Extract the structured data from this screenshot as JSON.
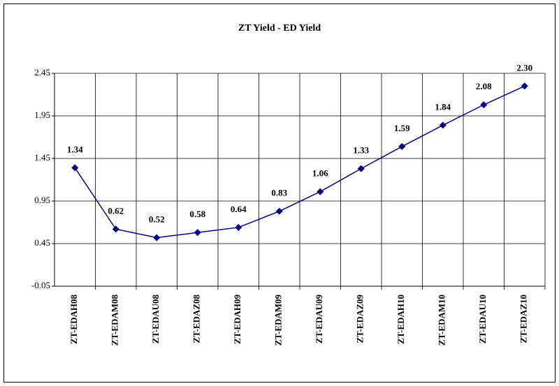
{
  "chart_data": {
    "type": "line",
    "title": "ZT Yield - ED Yield",
    "categories": [
      "ZT-EDAH08",
      "ZT-EDAM08",
      "ZT-EDAU08",
      "ZT-EDAZ08",
      "ZT-EDAH09",
      "ZT-EDAM09",
      "ZT-EDAU09",
      "ZT-EDAZ09",
      "ZT-EDAH10",
      "ZT-EDAM10",
      "ZT-EDAU10",
      "ZT-EDAZ10"
    ],
    "values": [
      1.34,
      0.62,
      0.52,
      0.58,
      0.64,
      0.83,
      1.06,
      1.33,
      1.59,
      1.84,
      2.08,
      2.3
    ],
    "value_labels": [
      "1.34",
      "0.62",
      "0.52",
      "0.58",
      "0.64",
      "0.83",
      "1.06",
      "1.33",
      "1.59",
      "1.84",
      "2.08",
      "2.30"
    ],
    "color": "#000080",
    "ylim": [
      -0.05,
      2.45
    ],
    "yticks": [
      -0.05,
      0.45,
      0.95,
      1.45,
      1.95,
      2.45
    ],
    "grid": true
  }
}
